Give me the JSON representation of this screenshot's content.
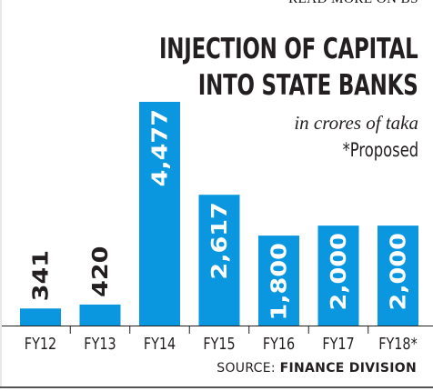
{
  "header": {
    "read_more": "READ MORE ON BS"
  },
  "title_line1": "INJECTION OF CAPITAL",
  "title_line2": "INTO STATE BANKS",
  "unit_note": "in crores of taka",
  "proposed_note": "*Proposed",
  "source_prefix": "SOURCE: ",
  "source_name": "FINANCE DIVISION",
  "colors": {
    "bar": "#0b97e0",
    "dark_text": "#231f20",
    "label_on_bar": "#ffffff"
  },
  "chart_data": {
    "type": "bar",
    "categories": [
      "FY12",
      "FY13",
      "FY14",
      "FY15",
      "FY16",
      "FY17",
      "FY18*"
    ],
    "values": [
      341,
      420,
      4477,
      2617,
      1800,
      2000,
      2000
    ],
    "value_labels": [
      "341",
      "420",
      "4,477",
      "2,617",
      "1,800",
      "2,000",
      "2,000"
    ],
    "title": "INJECTION OF CAPITAL INTO STATE BANKS",
    "ylabel": "",
    "xlabel": "",
    "ylim": [
      0,
      4477
    ],
    "grid": false,
    "legend": "none"
  }
}
